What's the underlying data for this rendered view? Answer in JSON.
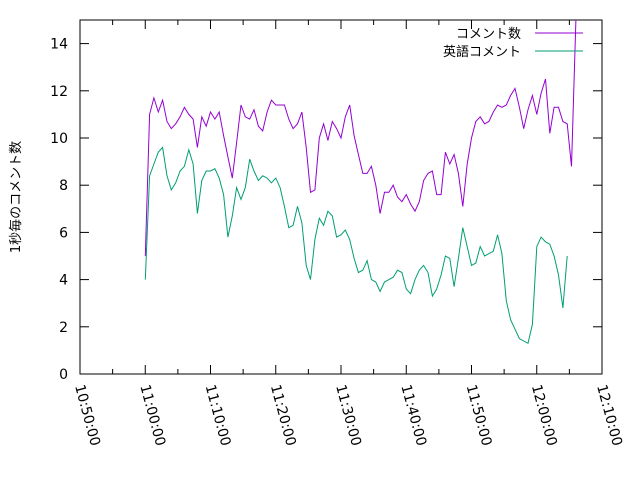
{
  "chart_data": {
    "type": "line",
    "title": "",
    "xlabel": "",
    "ylabel": "1秒毎のコメント数",
    "x_ticks": [
      "10:50:00",
      "11:00:00",
      "11:10:00",
      "11:20:00",
      "11:30:00",
      "11:40:00",
      "11:50:00",
      "12:00:00",
      "12:10:00"
    ],
    "y_ticks": [
      "0",
      "2",
      "4",
      "6",
      "8",
      "10",
      "12",
      "14"
    ],
    "xlim": [
      "10:50:00",
      "12:10:00"
    ],
    "ylim": [
      0,
      15
    ],
    "grid": false,
    "legend_position": "top-right",
    "x_start": "11:00:00",
    "x_step_seconds": 40,
    "series": [
      {
        "name": "コメント数",
        "color": "#9400d3",
        "values": [
          5.0,
          11.0,
          11.7,
          11.1,
          11.6,
          10.7,
          10.4,
          10.6,
          10.9,
          11.3,
          11.0,
          10.8,
          9.6,
          10.9,
          10.5,
          11.1,
          10.8,
          11.1,
          10.1,
          9.2,
          8.3,
          9.8,
          11.4,
          10.9,
          10.8,
          11.2,
          10.5,
          10.3,
          11.1,
          11.6,
          11.4,
          11.4,
          11.4,
          10.8,
          10.4,
          10.6,
          11.1,
          9.6,
          7.7,
          7.8,
          10.0,
          10.6,
          9.9,
          10.7,
          10.4,
          10.0,
          10.9,
          11.4,
          10.1,
          9.3,
          8.5,
          8.5,
          8.8,
          8.0,
          6.8,
          7.7,
          7.7,
          8.0,
          7.5,
          7.3,
          7.6,
          7.2,
          6.9,
          7.3,
          8.2,
          8.5,
          8.6,
          7.6,
          7.6,
          9.4,
          8.9,
          9.3,
          8.5,
          7.1,
          8.9,
          10.0,
          10.7,
          10.9,
          10.6,
          10.7,
          11.1,
          11.4,
          11.3,
          11.4,
          11.8,
          12.1,
          11.3,
          10.4,
          11.2,
          11.8,
          11.0,
          11.9,
          12.5,
          10.2,
          11.3,
          11.3,
          10.7,
          10.6,
          8.8,
          15.0
        ]
      },
      {
        "name": "英語コメント",
        "color": "#009e73",
        "values": [
          4.0,
          8.4,
          8.9,
          9.4,
          9.6,
          8.4,
          7.8,
          8.1,
          8.6,
          8.8,
          9.5,
          8.9,
          6.8,
          8.2,
          8.6,
          8.6,
          8.7,
          8.3,
          7.6,
          5.8,
          6.7,
          7.9,
          7.4,
          7.9,
          9.1,
          8.6,
          8.2,
          8.4,
          8.3,
          8.1,
          8.3,
          7.9,
          7.1,
          6.2,
          6.3,
          7.1,
          6.4,
          4.6,
          4.0,
          5.7,
          6.6,
          6.3,
          6.9,
          6.7,
          5.8,
          5.9,
          6.1,
          5.7,
          4.9,
          4.3,
          4.4,
          4.8,
          4.0,
          3.9,
          3.5,
          3.9,
          4.0,
          4.1,
          4.4,
          4.3,
          3.6,
          3.4,
          4.0,
          4.4,
          4.6,
          4.3,
          3.3,
          3.6,
          4.2,
          5.0,
          4.9,
          3.7,
          4.9,
          6.2,
          5.4,
          4.6,
          4.7,
          5.4,
          5.0,
          5.1,
          5.2,
          5.9,
          5.1,
          3.1,
          2.3,
          1.9,
          1.5,
          1.4,
          1.3,
          2.1,
          5.4,
          5.8,
          5.6,
          5.5,
          5.0,
          4.2,
          2.8,
          5.0
        ]
      }
    ]
  }
}
